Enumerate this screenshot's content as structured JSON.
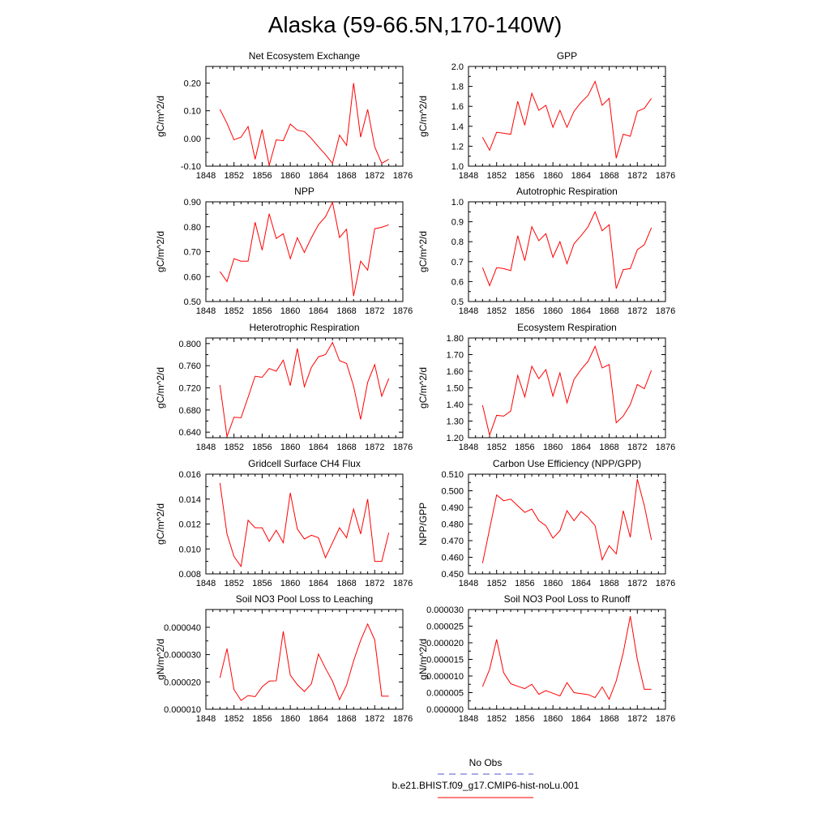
{
  "page_title": "Alaska (59-66.5N,170-140W)",
  "legend": {
    "entries": [
      {
        "label": "No Obs",
        "color": "#5555cc",
        "dash": "dashed"
      },
      {
        "label": "b.e21.BHIST.f09_g17.CMIP6-hist-noLu.001",
        "color": "#ff0000",
        "dash": "solid"
      }
    ]
  },
  "colors": {
    "series": "#ff0000",
    "obs": "#5555cc"
  },
  "chart_data": [
    {
      "type": "line",
      "title": "Net Ecosystem Exchange",
      "ylabel": "gC/m^2/d",
      "xlim": [
        1848,
        1876
      ],
      "ylim": [
        -0.1,
        0.26
      ],
      "xticks": [
        "1848",
        "1852",
        "1856",
        "1860",
        "1864",
        "1868",
        "1872",
        "1876"
      ],
      "yticks": [
        "-0.10",
        "0.00",
        "0.10",
        "0.20"
      ],
      "x": [
        1850,
        1851,
        1852,
        1853,
        1854,
        1855,
        1856,
        1857,
        1858,
        1859,
        1860,
        1861,
        1862,
        1863,
        1864,
        1865,
        1866,
        1867,
        1868,
        1869,
        1870,
        1871,
        1872,
        1873,
        1874
      ],
      "series": [
        {
          "values": [
            0.105,
            0.055,
            -0.005,
            0.005,
            0.043,
            -0.075,
            0.032,
            -0.097,
            -0.005,
            -0.008,
            0.052,
            0.03,
            0.025,
            0.0,
            -0.03,
            -0.058,
            -0.09,
            0.012,
            -0.025,
            0.2,
            0.005,
            0.105,
            -0.03,
            -0.09,
            -0.075
          ]
        }
      ]
    },
    {
      "type": "line",
      "title": "GPP",
      "ylabel": "gC/m^2/d",
      "xlim": [
        1848,
        1876
      ],
      "ylim": [
        1.0,
        2.0
      ],
      "xticks": [
        "1848",
        "1852",
        "1856",
        "1860",
        "1864",
        "1868",
        "1872",
        "1876"
      ],
      "yticks": [
        "1.0",
        "1.2",
        "1.4",
        "1.6",
        "1.8",
        "2.0"
      ],
      "x": [
        1850,
        1851,
        1852,
        1853,
        1854,
        1855,
        1856,
        1857,
        1858,
        1859,
        1860,
        1861,
        1862,
        1863,
        1864,
        1865,
        1866,
        1867,
        1868,
        1869,
        1870,
        1871,
        1872,
        1873,
        1874
      ],
      "series": [
        {
          "values": [
            1.29,
            1.16,
            1.34,
            1.33,
            1.32,
            1.65,
            1.41,
            1.73,
            1.56,
            1.61,
            1.39,
            1.56,
            1.39,
            1.55,
            1.64,
            1.71,
            1.85,
            1.61,
            1.68,
            1.08,
            1.32,
            1.3,
            1.55,
            1.58,
            1.68
          ]
        }
      ]
    },
    {
      "type": "line",
      "title": "NPP",
      "ylabel": "gC/m^2/d",
      "xlim": [
        1848,
        1876
      ],
      "ylim": [
        0.5,
        0.9
      ],
      "xticks": [
        "1848",
        "1852",
        "1856",
        "1860",
        "1864",
        "1868",
        "1872",
        "1876"
      ],
      "yticks": [
        "0.50",
        "0.60",
        "0.70",
        "0.80",
        "0.90"
      ],
      "x": [
        1850,
        1851,
        1852,
        1853,
        1854,
        1855,
        1856,
        1857,
        1858,
        1859,
        1860,
        1861,
        1862,
        1863,
        1864,
        1865,
        1866,
        1867,
        1868,
        1869,
        1870,
        1871,
        1872,
        1873,
        1874
      ],
      "series": [
        {
          "values": [
            0.62,
            0.58,
            0.672,
            0.662,
            0.662,
            0.818,
            0.706,
            0.852,
            0.753,
            0.772,
            0.672,
            0.756,
            0.697,
            0.756,
            0.808,
            0.84,
            0.898,
            0.757,
            0.79,
            0.522,
            0.662,
            0.626,
            0.792,
            0.798,
            0.808
          ]
        }
      ]
    },
    {
      "type": "line",
      "title": "Autotrophic Respiration",
      "ylabel": "gC/m^2/d",
      "xlim": [
        1848,
        1876
      ],
      "ylim": [
        0.5,
        1.0
      ],
      "xticks": [
        "1848",
        "1852",
        "1856",
        "1860",
        "1864",
        "1868",
        "1872",
        "1876"
      ],
      "yticks": [
        "0.5",
        "0.6",
        "0.7",
        "0.8",
        "0.9",
        "1.0"
      ],
      "x": [
        1850,
        1851,
        1852,
        1853,
        1854,
        1855,
        1856,
        1857,
        1858,
        1859,
        1860,
        1861,
        1862,
        1863,
        1864,
        1865,
        1866,
        1867,
        1868,
        1869,
        1870,
        1871,
        1872,
        1873,
        1874
      ],
      "series": [
        {
          "values": [
            0.67,
            0.58,
            0.67,
            0.665,
            0.655,
            0.83,
            0.705,
            0.875,
            0.805,
            0.84,
            0.722,
            0.8,
            0.69,
            0.79,
            0.83,
            0.875,
            0.95,
            0.855,
            0.885,
            0.565,
            0.66,
            0.665,
            0.76,
            0.785,
            0.87
          ]
        }
      ]
    },
    {
      "type": "line",
      "title": "Heterotrophic Respiration",
      "ylabel": "gC/m^2/d",
      "xlim": [
        1848,
        1876
      ],
      "ylim": [
        0.63,
        0.81
      ],
      "xticks": [
        "1848",
        "1852",
        "1856",
        "1860",
        "1864",
        "1868",
        "1872",
        "1876"
      ],
      "yticks": [
        "0.640",
        "0.680",
        "0.720",
        "0.760",
        "0.800"
      ],
      "x": [
        1850,
        1851,
        1852,
        1853,
        1854,
        1855,
        1856,
        1857,
        1858,
        1859,
        1860,
        1861,
        1862,
        1863,
        1864,
        1865,
        1866,
        1867,
        1868,
        1869,
        1870,
        1871,
        1872,
        1873,
        1874
      ],
      "series": [
        {
          "values": [
            0.725,
            0.632,
            0.667,
            0.666,
            0.703,
            0.741,
            0.739,
            0.755,
            0.75,
            0.77,
            0.724,
            0.791,
            0.722,
            0.757,
            0.776,
            0.78,
            0.802,
            0.769,
            0.764,
            0.723,
            0.663,
            0.73,
            0.762,
            0.705,
            0.737
          ]
        }
      ]
    },
    {
      "type": "line",
      "title": "Ecosystem Respiration",
      "ylabel": "gC/m^2/d",
      "xlim": [
        1848,
        1876
      ],
      "ylim": [
        1.2,
        1.8
      ],
      "xticks": [
        "1848",
        "1852",
        "1856",
        "1860",
        "1864",
        "1868",
        "1872",
        "1876"
      ],
      "yticks": [
        "1.20",
        "1.30",
        "1.40",
        "1.50",
        "1.60",
        "1.70",
        "1.80"
      ],
      "x": [
        1850,
        1851,
        1852,
        1853,
        1854,
        1855,
        1856,
        1857,
        1858,
        1859,
        1860,
        1861,
        1862,
        1863,
        1864,
        1865,
        1866,
        1867,
        1868,
        1869,
        1870,
        1871,
        1872,
        1873,
        1874
      ],
      "series": [
        {
          "values": [
            1.395,
            1.215,
            1.335,
            1.33,
            1.36,
            1.575,
            1.445,
            1.63,
            1.555,
            1.61,
            1.45,
            1.59,
            1.41,
            1.55,
            1.61,
            1.66,
            1.75,
            1.62,
            1.64,
            1.29,
            1.33,
            1.4,
            1.52,
            1.495,
            1.605
          ]
        }
      ]
    },
    {
      "type": "line",
      "title": "Gridcell Surface CH4 Flux",
      "ylabel": "gC/m^2/d",
      "xlim": [
        1848,
        1876
      ],
      "ylim": [
        0.008,
        0.016
      ],
      "xticks": [
        "1848",
        "1852",
        "1856",
        "1860",
        "1864",
        "1868",
        "1872",
        "1876"
      ],
      "yticks": [
        "0.008",
        "0.010",
        "0.012",
        "0.014",
        "0.016"
      ],
      "x": [
        1850,
        1851,
        1852,
        1853,
        1854,
        1855,
        1856,
        1857,
        1858,
        1859,
        1860,
        1861,
        1862,
        1863,
        1864,
        1865,
        1866,
        1867,
        1868,
        1869,
        1870,
        1871,
        1872,
        1873,
        1874
      ],
      "series": [
        {
          "values": [
            0.0153,
            0.0112,
            0.0094,
            0.0086,
            0.0123,
            0.0117,
            0.0117,
            0.0106,
            0.0115,
            0.0105,
            0.0145,
            0.0116,
            0.0108,
            0.0111,
            0.0109,
            0.0093,
            0.0105,
            0.0117,
            0.0109,
            0.0132,
            0.0112,
            0.014,
            0.009,
            0.009,
            0.0113
          ]
        }
      ]
    },
    {
      "type": "line",
      "title": "Carbon Use Efficiency (NPP/GPP)",
      "ylabel": "NPP/GPP",
      "xlim": [
        1848,
        1876
      ],
      "ylim": [
        0.45,
        0.51
      ],
      "xticks": [
        "1848",
        "1852",
        "1856",
        "1860",
        "1864",
        "1868",
        "1872",
        "1876"
      ],
      "yticks": [
        "0.450",
        "0.460",
        "0.470",
        "0.480",
        "0.490",
        "0.500",
        "0.510"
      ],
      "x": [
        1850,
        1851,
        1852,
        1853,
        1854,
        1855,
        1856,
        1857,
        1858,
        1859,
        1860,
        1861,
        1862,
        1863,
        1864,
        1865,
        1866,
        1867,
        1868,
        1869,
        1870,
        1871,
        1872,
        1873,
        1874
      ],
      "series": [
        {
          "values": [
            0.4565,
            0.477,
            0.4975,
            0.494,
            0.495,
            0.491,
            0.487,
            0.489,
            0.482,
            0.479,
            0.4715,
            0.476,
            0.488,
            0.482,
            0.4875,
            0.484,
            0.479,
            0.4585,
            0.467,
            0.462,
            0.488,
            0.472,
            0.507,
            0.491,
            0.4705
          ]
        }
      ]
    },
    {
      "type": "line",
      "title": "Soil NO3 Pool Loss to Leaching",
      "ylabel": "gN/m^2/d",
      "xlim": [
        1848,
        1876
      ],
      "ylim": [
        1e-05,
        4.65e-05
      ],
      "xticks": [
        "1848",
        "1852",
        "1856",
        "1860",
        "1864",
        "1868",
        "1872",
        "1876"
      ],
      "yticks": [
        "0.000010",
        "0.000020",
        "0.000030",
        "0.000040"
      ],
      "x": [
        1850,
        1851,
        1852,
        1853,
        1854,
        1855,
        1856,
        1857,
        1858,
        1859,
        1860,
        1861,
        1862,
        1863,
        1864,
        1865,
        1866,
        1867,
        1868,
        1869,
        1870,
        1871,
        1872,
        1873,
        1874
      ],
      "series": [
        {
          "values": [
            2.15e-05,
            3.22e-05,
            1.72e-05,
            1.32e-05,
            1.5e-05,
            1.46e-05,
            1.82e-05,
            2.03e-05,
            2.04e-05,
            3.85e-05,
            2.25e-05,
            1.9e-05,
            1.65e-05,
            1.93e-05,
            3.02e-05,
            2.5e-05,
            2.03e-05,
            1.35e-05,
            1.88e-05,
            2.77e-05,
            3.52e-05,
            4.12e-05,
            3.54e-05,
            1.48e-05,
            1.48e-05
          ]
        }
      ]
    },
    {
      "type": "line",
      "title": "Soil NO3 Pool Loss to Runoff",
      "ylabel": "gN/m^2/d",
      "xlim": [
        1848,
        1876
      ],
      "ylim": [
        0,
        3e-05
      ],
      "xticks": [
        "1848",
        "1852",
        "1856",
        "1860",
        "1864",
        "1868",
        "1872",
        "1876"
      ],
      "yticks": [
        "0.000000",
        "0.000005",
        "0.000010",
        "0.000015",
        "0.000020",
        "0.000025",
        "0.000030"
      ],
      "x": [
        1850,
        1851,
        1852,
        1853,
        1854,
        1855,
        1856,
        1857,
        1858,
        1859,
        1860,
        1861,
        1862,
        1863,
        1864,
        1865,
        1866,
        1867,
        1868,
        1869,
        1870,
        1871,
        1872,
        1873,
        1874
      ],
      "series": [
        {
          "values": [
            6.8e-06,
            1.2e-05,
            2.1e-05,
            1.1e-05,
            7.7e-06,
            6.9e-06,
            6.2e-06,
            7.5e-06,
            4.5e-06,
            5.6e-06,
            4.8e-06,
            4e-06,
            8e-06,
            5e-06,
            4.7e-06,
            4.4e-06,
            3.5e-06,
            6.7e-06,
            3e-06,
            8.5e-06,
            1.7e-05,
            2.8e-05,
            1.5e-05,
            6e-06,
            6e-06
          ]
        }
      ]
    }
  ]
}
